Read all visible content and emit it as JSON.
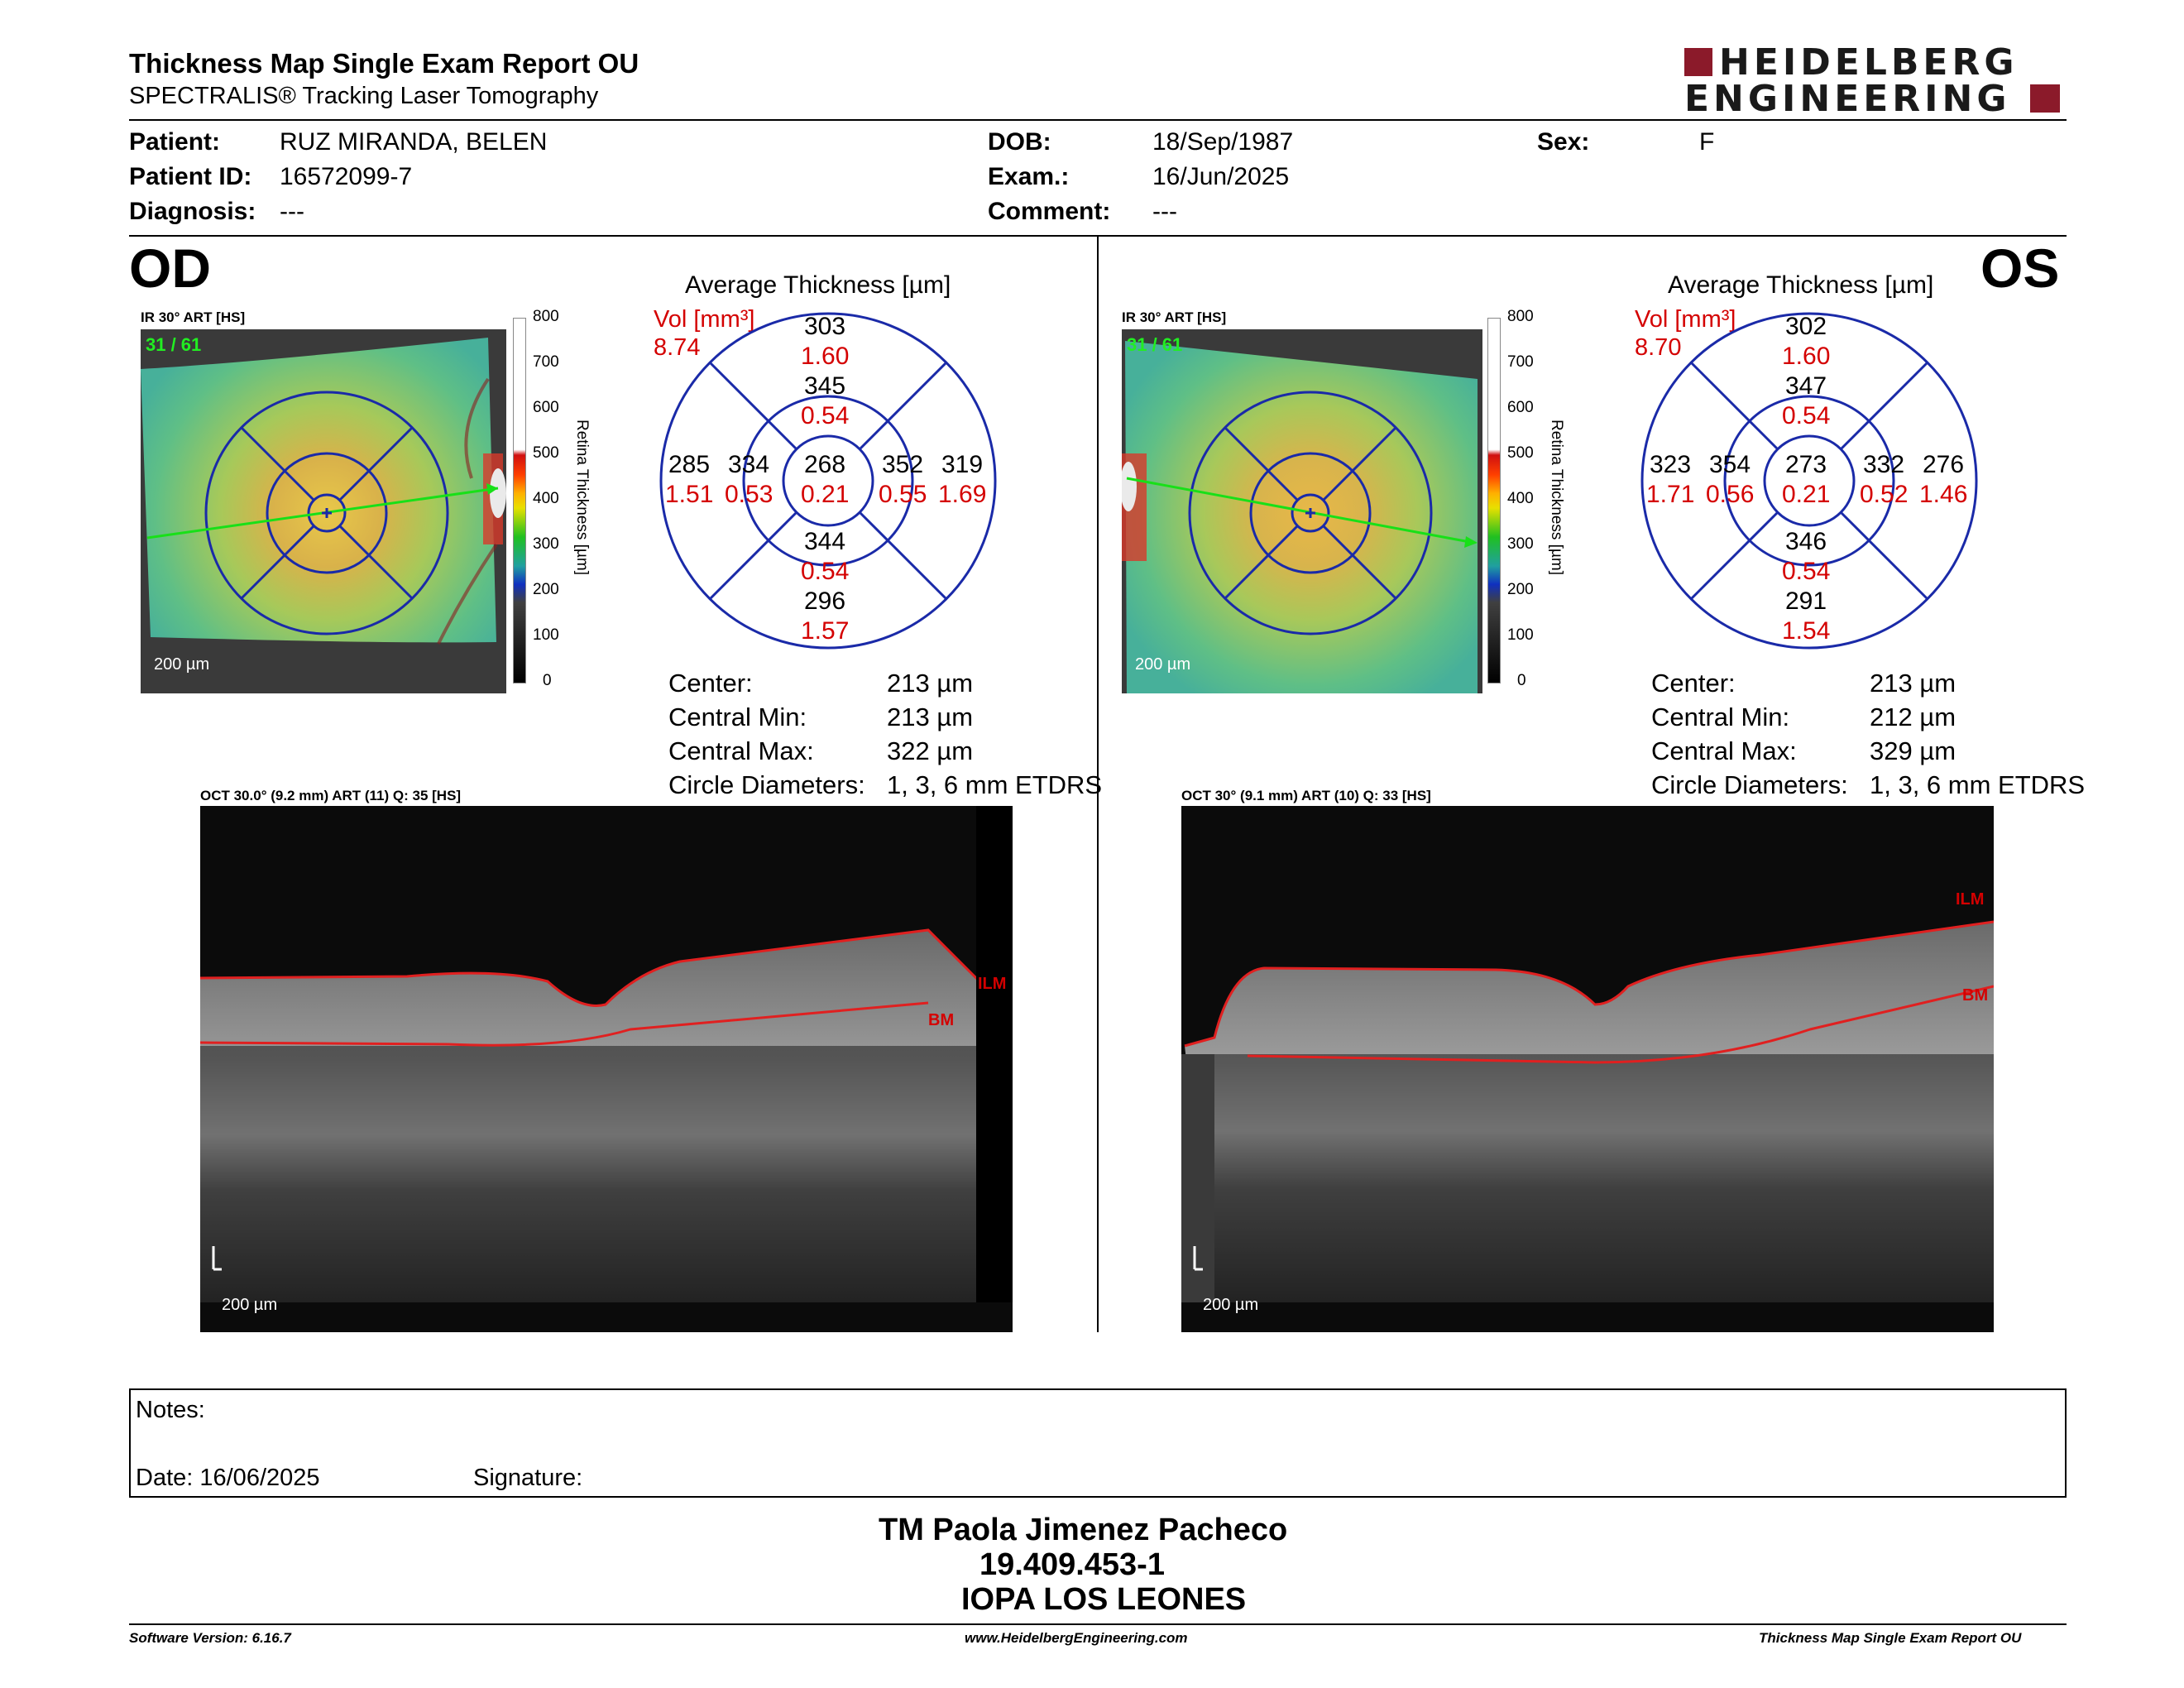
{
  "header": {
    "title": "Thickness Map Single Exam Report OU",
    "subtitle": "SPECTRALIS® Tracking Laser Tomography",
    "logo_line1": "HEIDELBERG",
    "logo_line2": "ENGINEERING",
    "brand_color": "#8b1a2a"
  },
  "patient": {
    "patient_label": "Patient:",
    "patient_value": "RUZ MIRANDA, BELEN",
    "id_label": "Patient ID:",
    "id_value": "16572099-7",
    "diagnosis_label": "Diagnosis:",
    "diagnosis_value": "---",
    "dob_label": "DOB:",
    "dob_value": "18/Sep/1987",
    "exam_label": "Exam.:",
    "exam_value": "16/Jun/2025",
    "comment_label": "Comment:",
    "comment_value": "---",
    "sex_label": "Sex:",
    "sex_value": "F"
  },
  "od": {
    "eye_label": "OD",
    "ir_caption": "IR 30° ART [HS]",
    "art_count": "31 / 61",
    "scale_label": "200 µm",
    "colorbar_ticks": [
      "800",
      "700",
      "600",
      "500",
      "400",
      "300",
      "200",
      "100",
      "0"
    ],
    "colorbar_title": "Retina Thickness [µm]",
    "chart_title": "Average Thickness [µm]",
    "vol_label": "Vol [mm³]",
    "vol_value": "8.74",
    "sectors": {
      "sup_outer": [
        "303",
        "1.60"
      ],
      "sup_inner": [
        "345",
        "0.54"
      ],
      "temp_outer": [
        "285",
        "1.51"
      ],
      "temp_inner": [
        "334",
        "0.53"
      ],
      "center": [
        "268",
        "0.21"
      ],
      "nas_inner": [
        "352",
        "0.55"
      ],
      "nas_outer": [
        "319",
        "1.69"
      ],
      "inf_inner": [
        "344",
        "0.54"
      ],
      "inf_outer": [
        "296",
        "1.57"
      ]
    },
    "stats": [
      {
        "label": "Center:",
        "value": "213 µm"
      },
      {
        "label": "Central Min:",
        "value": "213 µm"
      },
      {
        "label": "Central Max:",
        "value": "322 µm"
      },
      {
        "label": "Circle Diameters:",
        "value": "1, 3, 6 mm ETDRS"
      }
    ],
    "oct_caption": "OCT 30.0° (9.2 mm) ART (11) Q: 35 [HS]",
    "oct_scale": "200 µm",
    "ilm_label": "ILM",
    "bm_label": "BM"
  },
  "os": {
    "eye_label": "OS",
    "ir_caption": "IR 30° ART [HS]",
    "art_count": "31 / 61",
    "scale_label": "200 µm",
    "colorbar_ticks": [
      "800",
      "700",
      "600",
      "500",
      "400",
      "300",
      "200",
      "100",
      "0"
    ],
    "colorbar_title": "Retina Thickness [µm]",
    "chart_title": "Average Thickness [µm]",
    "vol_label": "Vol [mm³]",
    "vol_value": "8.70",
    "sectors": {
      "sup_outer": [
        "302",
        "1.60"
      ],
      "sup_inner": [
        "347",
        "0.54"
      ],
      "temp_outer": [
        "323",
        "1.71"
      ],
      "temp_inner": [
        "354",
        "0.56"
      ],
      "center": [
        "273",
        "0.21"
      ],
      "nas_inner": [
        "332",
        "0.52"
      ],
      "nas_outer": [
        "276",
        "1.46"
      ],
      "inf_inner": [
        "346",
        "0.54"
      ],
      "inf_outer": [
        "291",
        "1.54"
      ]
    },
    "stats": [
      {
        "label": "Center:",
        "value": "213 µm"
      },
      {
        "label": "Central Min:",
        "value": "212 µm"
      },
      {
        "label": "Central Max:",
        "value": "329 µm"
      },
      {
        "label": "Circle Diameters:",
        "value": "1, 3, 6 mm ETDRS"
      }
    ],
    "oct_caption": "OCT 30° (9.1 mm) ART (10) Q: 33 [HS]",
    "oct_scale": "200 µm",
    "ilm_label": "ILM",
    "bm_label": "BM"
  },
  "notes": {
    "notes_label": "Notes:",
    "date_label": "Date: 16/06/2025",
    "signature_label": "Signature:"
  },
  "signatory": {
    "name": "TM Paola Jimenez Pacheco",
    "rut": "19.409.453-1",
    "institution": "IOPA LOS LEONES"
  },
  "footer": {
    "software": "Software Version: 6.16.7",
    "website": "www.HeidelbergEngineering.com",
    "report": "Thickness Map Single Exam Report OU"
  }
}
